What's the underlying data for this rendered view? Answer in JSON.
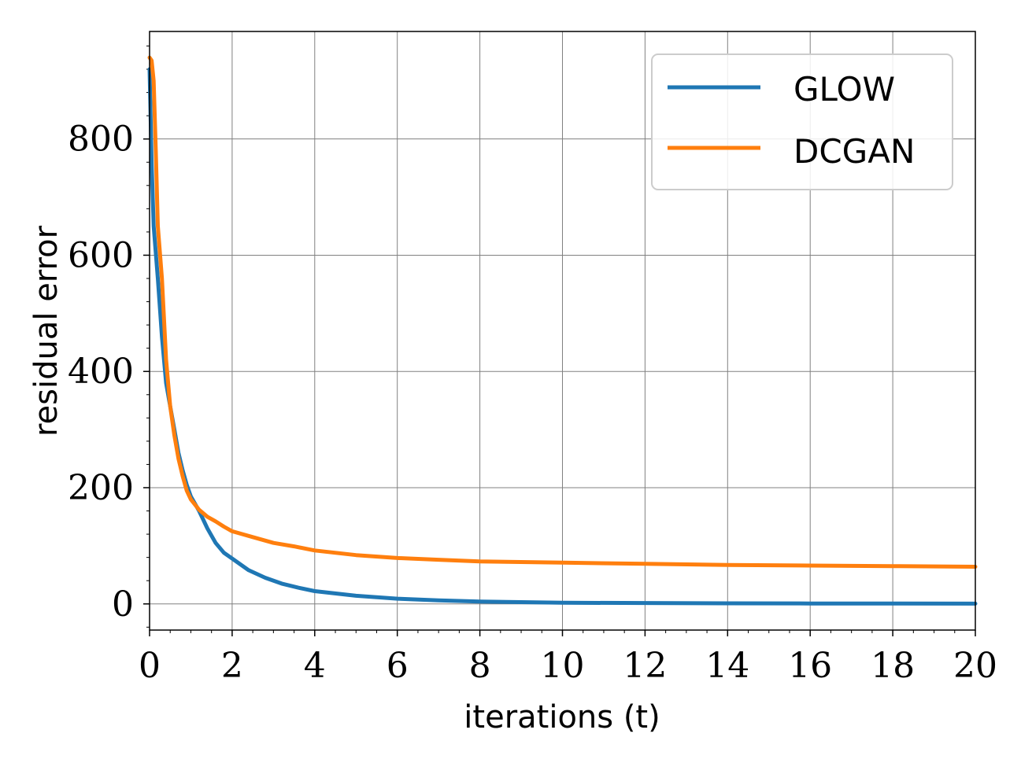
{
  "chart_data": {
    "type": "line",
    "xlabel": "iterations (t)",
    "ylabel": "residual error",
    "xlim": [
      0,
      20
    ],
    "ylim": [
      -45,
      985
    ],
    "xticks": [
      "0",
      "2",
      "4",
      "6",
      "8",
      "10",
      "12",
      "14",
      "16",
      "18",
      "20"
    ],
    "yticks": [
      "0",
      "200",
      "400",
      "600",
      "800"
    ],
    "grid": true,
    "legend_position": "top-right",
    "series": [
      {
        "name": "GLOW",
        "color": "#1f77b4",
        "x": [
          0,
          0.05,
          0.1,
          0.2,
          0.3,
          0.4,
          0.5,
          0.6,
          0.7,
          0.8,
          0.9,
          1.0,
          1.2,
          1.4,
          1.6,
          1.8,
          2.0,
          2.4,
          2.8,
          3.2,
          3.6,
          4.0,
          5,
          6,
          7,
          8,
          9,
          10,
          12,
          14,
          16,
          18,
          20
        ],
        "y": [
          920,
          760,
          650,
          560,
          460,
          380,
          340,
          300,
          260,
          230,
          205,
          185,
          160,
          130,
          105,
          88,
          78,
          58,
          45,
          35,
          28,
          22,
          14,
          9,
          6,
          4,
          3,
          2,
          1.5,
          1,
          0.8,
          0.6,
          0.5
        ]
      },
      {
        "name": "DCGAN",
        "color": "#ff7f0e",
        "x": [
          0,
          0.05,
          0.1,
          0.15,
          0.2,
          0.3,
          0.4,
          0.5,
          0.6,
          0.7,
          0.8,
          0.9,
          1.0,
          1.2,
          1.4,
          1.6,
          1.8,
          2.0,
          2.5,
          3,
          3.5,
          4,
          5,
          6,
          7,
          8,
          10,
          12,
          14,
          16,
          18,
          20
        ],
        "y": [
          940,
          935,
          900,
          780,
          650,
          560,
          420,
          340,
          290,
          250,
          220,
          195,
          180,
          162,
          150,
          142,
          133,
          125,
          115,
          105,
          99,
          92,
          84,
          79,
          76,
          73,
          71,
          69,
          67,
          66,
          65,
          64
        ]
      }
    ]
  }
}
